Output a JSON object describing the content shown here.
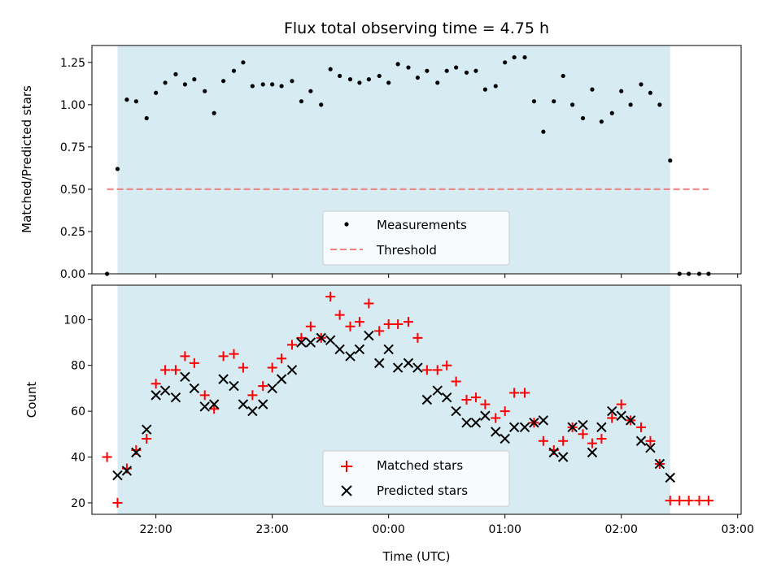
{
  "chart_data": [
    {
      "type": "scatter",
      "title": "Flux total observing time = 4.75 h",
      "xlabel": "",
      "ylabel": "Matched/Predicted stars",
      "ylim": [
        0,
        1.35
      ],
      "yticks": [
        "0.00",
        "0.25",
        "0.50",
        "0.75",
        "1.00",
        "1.25"
      ],
      "x_range_hours": [
        21.45,
        27.03
      ],
      "observing_window_hours": [
        21.67,
        26.42
      ],
      "legend": "lower-center",
      "series": [
        {
          "name": "Measurements",
          "marker": "dot",
          "color": "#000000",
          "x": [
            21.58,
            21.67,
            21.75,
            21.83,
            21.92,
            22.0,
            22.08,
            22.17,
            22.25,
            22.33,
            22.42,
            22.5,
            22.58,
            22.67,
            22.75,
            22.83,
            22.92,
            23.0,
            23.08,
            23.17,
            23.25,
            23.33,
            23.42,
            23.5,
            23.58,
            23.67,
            23.75,
            23.83,
            23.92,
            24.0,
            24.08,
            24.17,
            24.25,
            24.33,
            24.42,
            24.5,
            24.58,
            24.67,
            24.75,
            24.83,
            24.92,
            25.0,
            25.08,
            25.17,
            25.25,
            25.33,
            25.42,
            25.5,
            25.58,
            25.67,
            25.75,
            25.83,
            25.92,
            26.0,
            26.08,
            26.17,
            26.25,
            26.33,
            26.42,
            26.5,
            26.58,
            26.67,
            26.75
          ],
          "y": [
            0.0,
            0.62,
            1.03,
            1.02,
            0.92,
            1.07,
            1.13,
            1.18,
            1.12,
            1.15,
            1.08,
            0.95,
            1.14,
            1.2,
            1.25,
            1.11,
            1.12,
            1.12,
            1.11,
            1.14,
            1.02,
            1.08,
            1.0,
            1.21,
            1.17,
            1.15,
            1.13,
            1.15,
            1.17,
            1.13,
            1.24,
            1.22,
            1.16,
            1.2,
            1.13,
            1.2,
            1.22,
            1.19,
            1.2,
            1.09,
            1.11,
            1.25,
            1.28,
            1.28,
            1.02,
            0.84,
            1.02,
            1.17,
            1.0,
            0.92,
            1.09,
            0.9,
            0.95,
            1.08,
            1.0,
            1.12,
            1.07,
            1.0,
            0.67,
            0.0,
            0.0,
            0.0,
            0.0
          ]
        },
        {
          "name": "Threshold",
          "marker": "dashed-line",
          "color": "#f08080",
          "x": [
            21.58,
            26.75
          ],
          "y": [
            0.5,
            0.5
          ]
        }
      ]
    },
    {
      "type": "scatter",
      "title": "",
      "xlabel": "Time (UTC)",
      "ylabel": "Count",
      "ylim": [
        15,
        115
      ],
      "yticks": [
        "20",
        "40",
        "60",
        "80",
        "100"
      ],
      "xticks": [
        {
          "value": 22,
          "label": "22:00"
        },
        {
          "value": 23,
          "label": "23:00"
        },
        {
          "value": 24,
          "label": "00:00"
        },
        {
          "value": 25,
          "label": "01:00"
        },
        {
          "value": 26,
          "label": "02:00"
        },
        {
          "value": 27,
          "label": "03:00"
        }
      ],
      "x_range_hours": [
        21.45,
        27.03
      ],
      "observing_window_hours": [
        21.67,
        26.42
      ],
      "legend": "lower-center",
      "series": [
        {
          "name": "Matched stars",
          "marker": "plus",
          "color": "#ff0000",
          "x": [
            21.58,
            21.67,
            21.75,
            21.83,
            21.92,
            22.0,
            22.08,
            22.17,
            22.25,
            22.33,
            22.42,
            22.5,
            22.58,
            22.67,
            22.75,
            22.83,
            22.92,
            23.0,
            23.08,
            23.17,
            23.25,
            23.33,
            23.42,
            23.5,
            23.58,
            23.67,
            23.75,
            23.83,
            23.92,
            24.0,
            24.08,
            24.17,
            24.25,
            24.33,
            24.42,
            24.5,
            24.58,
            24.67,
            24.75,
            24.83,
            24.92,
            25.0,
            25.08,
            25.17,
            25.25,
            25.33,
            25.42,
            25.5,
            25.58,
            25.67,
            25.75,
            25.83,
            25.92,
            26.0,
            26.08,
            26.17,
            26.25,
            26.33,
            26.42,
            26.5,
            26.58,
            26.67,
            26.75
          ],
          "y": [
            40,
            20,
            35,
            43,
            48,
            72,
            78,
            78,
            84,
            81,
            67,
            61,
            84,
            85,
            79,
            67,
            71,
            79,
            83,
            89,
            92,
            97,
            92,
            110,
            102,
            97,
            99,
            107,
            95,
            98,
            98,
            99,
            92,
            78,
            78,
            80,
            73,
            65,
            66,
            63,
            57,
            60,
            68,
            68,
            55,
            47,
            43,
            47,
            53,
            50,
            46,
            48,
            57,
            63,
            56,
            53,
            47,
            37,
            21,
            21,
            21,
            21,
            21
          ]
        },
        {
          "name": "Predicted stars",
          "marker": "x",
          "color": "#000000",
          "x": [
            21.67,
            21.75,
            21.83,
            21.92,
            22.0,
            22.08,
            22.17,
            22.25,
            22.33,
            22.42,
            22.5,
            22.58,
            22.67,
            22.75,
            22.83,
            22.92,
            23.0,
            23.08,
            23.17,
            23.25,
            23.33,
            23.42,
            23.5,
            23.58,
            23.67,
            23.75,
            23.83,
            23.92,
            24.0,
            24.08,
            24.17,
            24.25,
            24.33,
            24.42,
            24.5,
            24.58,
            24.67,
            24.75,
            24.83,
            24.92,
            25.0,
            25.08,
            25.17,
            25.25,
            25.33,
            25.42,
            25.5,
            25.58,
            25.67,
            25.75,
            25.83,
            25.92,
            26.0,
            26.08,
            26.17,
            26.25,
            26.33,
            26.42
          ],
          "y": [
            32,
            34,
            42,
            52,
            67,
            69,
            66,
            75,
            70,
            62,
            63,
            74,
            71,
            63,
            60,
            63,
            70,
            74,
            78,
            90,
            90,
            92,
            91,
            87,
            84,
            87,
            93,
            81,
            87,
            79,
            81,
            79,
            65,
            69,
            66,
            60,
            55,
            55,
            58,
            51,
            48,
            53,
            53,
            55,
            56,
            42,
            40,
            53,
            54,
            42,
            53,
            60,
            58,
            56,
            47,
            44,
            37,
            31
          ]
        }
      ]
    }
  ]
}
